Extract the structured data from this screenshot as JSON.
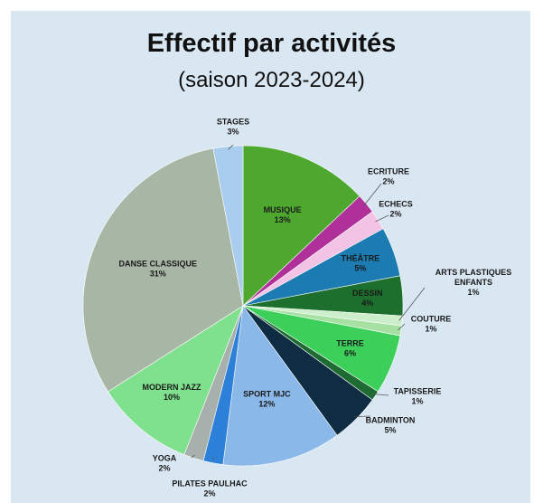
{
  "chart_data": {
    "type": "pie",
    "title": "Effectif par activités",
    "subtitle": "(saison 2023-2024)",
    "slices": [
      {
        "label": "MUSIQUE",
        "value": 13,
        "pct": "13%",
        "color": "#4ea72e"
      },
      {
        "label": "ECRITURE",
        "value": 2,
        "pct": "2%",
        "color": "#b0309a"
      },
      {
        "label": "ECHECS",
        "value": 2,
        "pct": "2%",
        "color": "#f3c3e6"
      },
      {
        "label": "THÉÂTRE",
        "value": 5,
        "pct": "5%",
        "color": "#1c7bb0"
      },
      {
        "label": "DESSIN",
        "value": 4,
        "pct": "4%",
        "color": "#1c6f2c"
      },
      {
        "label": "ARTS PLASTIQUES ENFANTS",
        "value": 1,
        "pct": "1%",
        "color": "#cdeecb"
      },
      {
        "label": "COUTURE",
        "value": 1,
        "pct": "1%",
        "color": "#a6e0a2"
      },
      {
        "label": "TERRE",
        "value": 6,
        "pct": "6%",
        "color": "#3cd05a"
      },
      {
        "label": "TAPISSERIE",
        "value": 1,
        "pct": "1%",
        "color": "#1e6a33"
      },
      {
        "label": "BADMINTON",
        "value": 5,
        "pct": "5%",
        "color": "#0f2d42"
      },
      {
        "label": "SPORT MJC",
        "value": 12,
        "pct": "12%",
        "color": "#8ab8e8"
      },
      {
        "label": "PILATES PAULHAC",
        "value": 2,
        "pct": "2%",
        "color": "#2c80d8"
      },
      {
        "label": "YOGA",
        "value": 2,
        "pct": "2%",
        "color": "#a7b0ad"
      },
      {
        "label": "MODERN JAZZ",
        "value": 10,
        "pct": "10%",
        "color": "#7fe08e"
      },
      {
        "label": "DANSE CLASSIQUE",
        "value": 31,
        "pct": "31%",
        "color": "#a8b6a6"
      },
      {
        "label": "STAGES",
        "value": 3,
        "pct": "3%",
        "color": "#a9cdef"
      }
    ]
  }
}
